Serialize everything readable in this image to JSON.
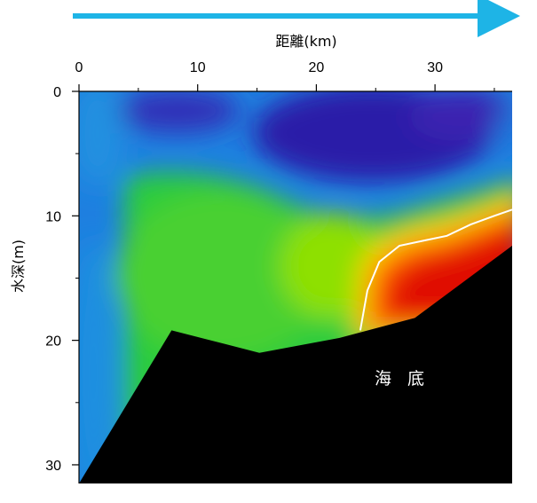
{
  "chart_data": {
    "type": "heatmap",
    "title": "",
    "xlabel": "距離(km)",
    "ylabel": "水深(m)",
    "x_ticks": [
      0,
      10,
      20,
      30
    ],
    "y_ticks": [
      0,
      10,
      20,
      30
    ],
    "xlim": [
      0,
      36.5
    ],
    "ylim": [
      0,
      31.5
    ],
    "x_axis_position": "top",
    "y_axis_inverted": true,
    "direction_arrow": "right",
    "colormap": [
      "#2a1aa8",
      "#1e6ee0",
      "#22c850",
      "#88e000",
      "#ffd000",
      "#ff2000",
      "#c00000"
    ],
    "arrow_color": "#1eb4e6",
    "seabed": {
      "label": "海 底",
      "color": "#000000",
      "profile": [
        [
          0,
          31.5
        ],
        [
          7.8,
          19.2
        ],
        [
          15.2,
          21.0
        ],
        [
          22.0,
          19.8
        ],
        [
          28.3,
          18.2
        ],
        [
          36.5,
          12.4
        ]
      ]
    },
    "contour_line": {
      "color": "#ffffff",
      "points": [
        [
          23.7,
          19.2
        ],
        [
          24.3,
          16.0
        ],
        [
          25.3,
          13.7
        ],
        [
          27.0,
          12.4
        ],
        [
          29.0,
          12.0
        ],
        [
          31.0,
          11.6
        ],
        [
          33.0,
          10.7
        ],
        [
          35.0,
          10.0
        ],
        [
          36.5,
          9.5
        ]
      ]
    }
  }
}
